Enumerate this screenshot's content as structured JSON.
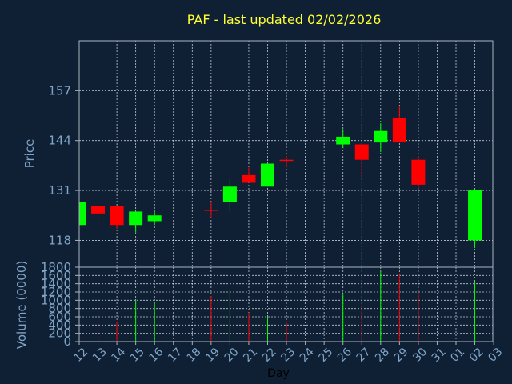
{
  "chart_data": {
    "type": "candlestick",
    "title": "PAF - last updated 02/02/2026",
    "xlabel": "Day",
    "price_panel": {
      "ylabel": "Price",
      "yticks": [
        118,
        131,
        144,
        157
      ],
      "ylim": [
        111,
        170
      ],
      "grid": true
    },
    "volume_panel": {
      "ylabel": "Volume (0000)",
      "yticks": [
        0,
        200,
        400,
        600,
        800,
        1000,
        1200,
        1400,
        1600,
        1800
      ],
      "ylim": [
        0,
        1800
      ],
      "grid": true
    },
    "x_labels": [
      "12",
      "13",
      "14",
      "15",
      "16",
      "17",
      "18",
      "19",
      "20",
      "21",
      "22",
      "23",
      "24",
      "25",
      "26",
      "27",
      "28",
      "29",
      "30",
      "31",
      "01",
      "02",
      "03"
    ],
    "candles": [
      {
        "day": "12",
        "open": 122,
        "close": 128,
        "high": 128,
        "low": 122,
        "volume": 0
      },
      {
        "day": "13",
        "open": 127,
        "close": 125,
        "high": 127,
        "low": 121,
        "volume": 750
      },
      {
        "day": "14",
        "open": 127,
        "close": 122,
        "high": 127,
        "low": 121,
        "volume": 480
      },
      {
        "day": "15",
        "open": 122,
        "close": 125.5,
        "high": 125.5,
        "low": 120,
        "volume": 1000
      },
      {
        "day": "16",
        "open": 123,
        "close": 124.5,
        "high": 125.5,
        "low": 122,
        "volume": 950
      },
      {
        "day": "19",
        "open": 126,
        "close": 126,
        "high": 128,
        "low": 124,
        "volume": 1100
      },
      {
        "day": "20",
        "open": 128,
        "close": 132,
        "high": 134,
        "low": 125.5,
        "volume": 1250
      },
      {
        "day": "21",
        "open": 135,
        "close": 133,
        "high": 137,
        "low": 133,
        "volume": 700
      },
      {
        "day": "22",
        "open": 132,
        "close": 138,
        "high": 138,
        "low": 132,
        "volume": 600
      },
      {
        "day": "23",
        "open": 139,
        "close": 139,
        "high": 140,
        "low": 137,
        "volume": 470
      },
      {
        "day": "26",
        "open": 143,
        "close": 145,
        "high": 147,
        "low": 142,
        "volume": 1150
      },
      {
        "day": "27",
        "open": 143,
        "close": 139,
        "high": 143,
        "low": 135,
        "volume": 850
      },
      {
        "day": "28",
        "open": 143.5,
        "close": 146.5,
        "high": 148.5,
        "low": 141,
        "volume": 1700
      },
      {
        "day": "29",
        "open": 150,
        "close": 143.5,
        "high": 153,
        "low": 143.5,
        "volume": 1650
      },
      {
        "day": "30",
        "open": 139,
        "close": 132.5,
        "high": 140,
        "low": 131.5,
        "volume": 1200
      },
      {
        "day": "02",
        "open": 118,
        "close": 131,
        "high": 131.5,
        "low": 116,
        "volume": 1450
      }
    ],
    "colors": {
      "up": "#00ff00",
      "down": "#ff0000",
      "background": "#0f2035",
      "axis_text": "#7fa4c6",
      "title": "#ffff33",
      "grid": "#ffffff",
      "frame": "#aab3c0"
    }
  }
}
